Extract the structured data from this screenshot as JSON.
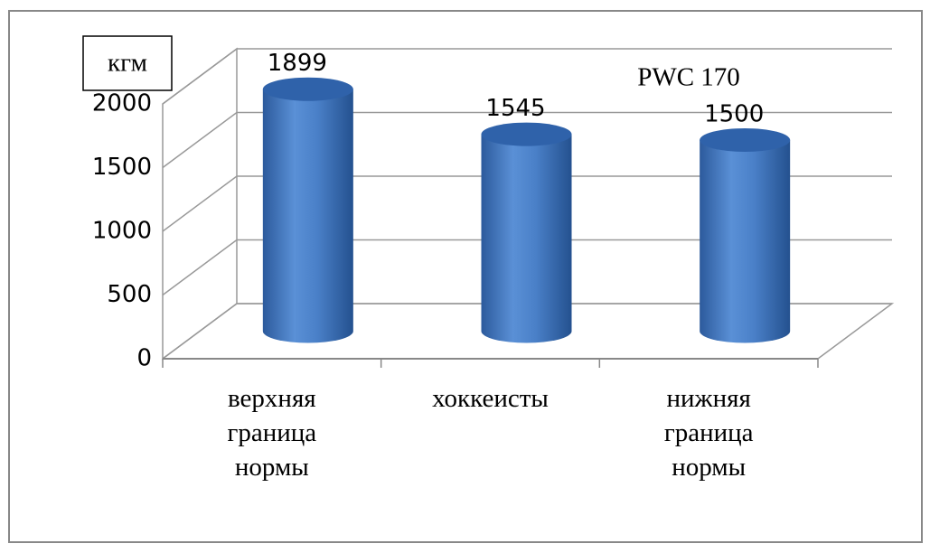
{
  "chart_data": {
    "type": "bar",
    "title": "PWC 170",
    "ylabel": "кгм",
    "categories": [
      "верхняя граница нормы",
      "хоккеисты",
      "нижняя граница нормы"
    ],
    "values": [
      1899,
      1545,
      1500
    ],
    "color": "#4a80c8",
    "ylim": [
      0,
      2000
    ],
    "yticks": [
      0,
      500,
      1000,
      1500,
      2000
    ],
    "grid": true
  }
}
